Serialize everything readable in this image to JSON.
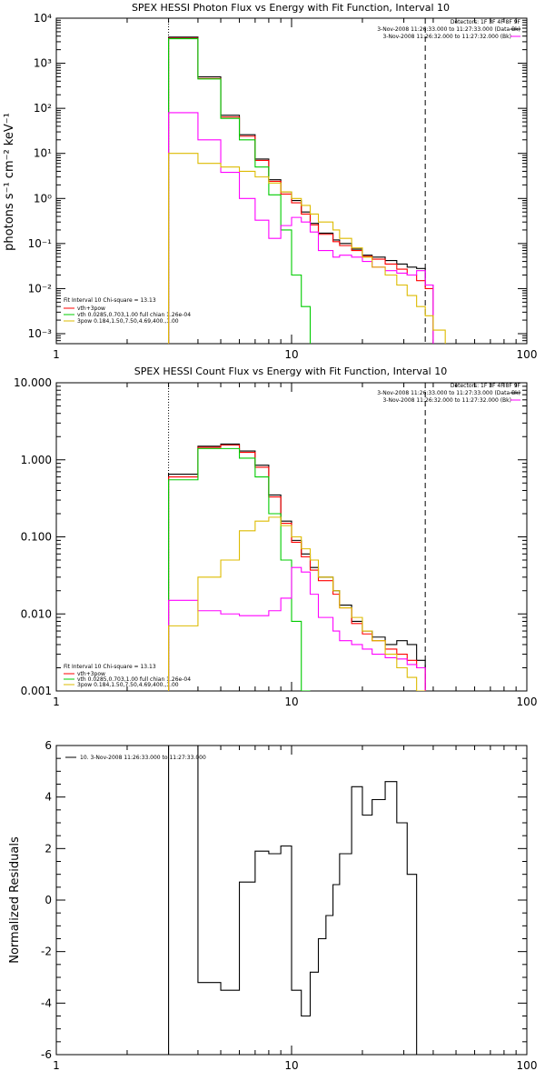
{
  "chart_data": [
    {
      "type": "line",
      "title": "SPEX HESSI Photon Flux vs Energy with Fit Function, Interval 10",
      "ylabel": "photons s⁻¹ cm⁻² keV⁻¹",
      "xlabel": "",
      "xscale": "log",
      "yscale": "log",
      "xlim": [
        1,
        100
      ],
      "ylim": [
        0.0006,
        10000
      ],
      "xticks": [
        1,
        10,
        100
      ],
      "xtick_labels": [
        "1",
        "10",
        "100"
      ],
      "yticks": [
        0.001,
        0.01,
        0.1,
        1,
        10,
        100,
        1000,
        10000
      ],
      "ytick_labels": [
        "10⁻³",
        "10⁻²",
        "10⁻¹",
        "10⁰",
        "10¹",
        "10²",
        "10³",
        "10⁴"
      ],
      "header_text": [
        "Detectors: 1F 3F 4F 8F 9F",
        "3-Nov-2008 11:26:33.000 to 11:27:33.000 (Data-Bk)",
        "3-Nov-2008 11:26:32.000 to 11:27:32.000 (Bk)"
      ],
      "legend_text": [
        "Fit Interval 10   Chi-square = 13.13",
        "vth+3pow",
        "vth 0.0285,0.703,1.00  full chian 1.26e-04",
        "3pow 0.184,1.50,7.50,4.69,400.,1.00"
      ],
      "vlines": [
        {
          "x": 3,
          "style": "dotted"
        },
        {
          "x": 37,
          "style": "dashed"
        }
      ],
      "series": [
        {
          "name": "",
          "color": "#000000",
          "edges": [
            3,
            4,
            5,
            6,
            7,
            8,
            9,
            10,
            11,
            12,
            13,
            15,
            16,
            18,
            20,
            22,
            25,
            28,
            31,
            34,
            37,
            40
          ],
          "values": [
            3800,
            500,
            70,
            26,
            7.5,
            2.6,
            1.4,
            0.9,
            0.5,
            0.28,
            0.17,
            0.12,
            0.1,
            0.075,
            0.055,
            0.05,
            0.042,
            0.035,
            0.03,
            0.028,
            0.012
          ]
        },
        {
          "name": "",
          "color": "#ff0000",
          "edges": [
            3,
            4,
            5,
            6,
            7,
            8,
            9,
            10,
            11,
            12,
            13,
            15,
            16,
            18,
            20,
            22,
            25,
            28,
            31,
            34,
            37,
            40
          ],
          "values": [
            3600,
            460,
            64,
            24,
            7,
            2.4,
            1.25,
            0.8,
            0.45,
            0.26,
            0.16,
            0.11,
            0.09,
            0.07,
            0.052,
            0.045,
            0.035,
            0.027,
            0.02,
            0.015,
            0.01
          ]
        },
        {
          "name": "",
          "color": "#00cc00",
          "edges": [
            3,
            4,
            5,
            6,
            7,
            8,
            9,
            10,
            11,
            12
          ],
          "values": [
            3500,
            450,
            60,
            20,
            5,
            1.2,
            0.2,
            0.02,
            0.004
          ]
        },
        {
          "name": "",
          "color": "#ff00ff",
          "edges": [
            3,
            4,
            5,
            6,
            7,
            8,
            9,
            10,
            11,
            12,
            13,
            15,
            16,
            18,
            20,
            22,
            25,
            28,
            31,
            34,
            37,
            40
          ],
          "values": [
            80,
            20,
            3.8,
            1.0,
            0.33,
            0.13,
            0.25,
            0.38,
            0.3,
            0.18,
            0.07,
            0.05,
            0.055,
            0.05,
            0.04,
            0.03,
            0.025,
            0.022,
            0.02,
            0.025,
            0.012
          ]
        },
        {
          "name": "",
          "color": "#ddbb00",
          "edges": [
            3,
            4,
            5,
            6,
            7,
            8,
            9,
            10,
            11,
            12,
            13,
            15,
            16,
            18,
            20,
            22,
            25,
            28,
            31,
            34,
            37,
            40,
            45
          ],
          "values": [
            10,
            6,
            5,
            4,
            3,
            2.2,
            1.4,
            1.0,
            0.7,
            0.45,
            0.3,
            0.2,
            0.13,
            0.08,
            0.05,
            0.03,
            0.02,
            0.012,
            0.007,
            0.004,
            0.0025,
            0.0012
          ]
        }
      ]
    },
    {
      "type": "line",
      "title": "SPEX HESSI Count Flux vs Energy with Fit Function, Interval 10",
      "xlabel": "",
      "ylabel": "",
      "xscale": "log",
      "yscale": "log",
      "xlim": [
        1,
        100
      ],
      "ylim": [
        0.001,
        10
      ],
      "xticks": [
        1,
        10,
        100
      ],
      "xtick_labels": [
        "1",
        "10",
        "100"
      ],
      "yticks": [
        0.001,
        0.01,
        0.1,
        1,
        10
      ],
      "ytick_labels": [
        "0.001",
        "0.010",
        "0.100",
        "1.000",
        "10.000"
      ],
      "header_text": [
        "Detectors: 1F 3F 4F 8F 9F",
        "3-Nov-2008 11:26:33.000 to 11:27:33.000 (Data-Bk)",
        "3-Nov-2008 11:26:32.000 to 11:27:32.000 (Bk)"
      ],
      "legend_text": [
        "Fit Interval 10   Chi-square = 13.13",
        "vth+3pow",
        "vth 0.0285,0.703,1.00  full chian 1.26e-04",
        "3pow 0.184,1.50,7.50,4.69,400.,1.00"
      ],
      "vlines": [
        {
          "x": 3,
          "style": "dotted"
        },
        {
          "x": 37,
          "style": "dashed"
        }
      ],
      "series": [
        {
          "name": "",
          "color": "#000000",
          "edges": [
            3,
            4,
            5,
            6,
            7,
            8,
            9,
            10,
            11,
            12,
            13,
            15,
            16,
            18,
            20,
            22,
            25,
            28,
            31,
            34,
            37
          ],
          "values": [
            0.65,
            1.5,
            1.6,
            1.3,
            0.85,
            0.35,
            0.16,
            0.09,
            0.06,
            0.04,
            0.03,
            0.02,
            0.013,
            0.008,
            0.006,
            0.005,
            0.004,
            0.0045,
            0.004,
            0.0025
          ]
        },
        {
          "name": "",
          "color": "#ff0000",
          "edges": [
            3,
            4,
            5,
            6,
            7,
            8,
            9,
            10,
            11,
            12,
            13,
            15,
            16,
            18,
            20,
            22,
            25,
            28,
            31,
            34,
            37
          ],
          "values": [
            0.6,
            1.45,
            1.55,
            1.25,
            0.8,
            0.33,
            0.15,
            0.085,
            0.055,
            0.037,
            0.027,
            0.018,
            0.012,
            0.0075,
            0.0055,
            0.0045,
            0.0035,
            0.003,
            0.0025,
            0.002
          ]
        },
        {
          "name": "",
          "color": "#00cc00",
          "edges": [
            3,
            4,
            5,
            6,
            7,
            8,
            9,
            10,
            11,
            12
          ],
          "values": [
            0.55,
            1.4,
            1.4,
            1.05,
            0.6,
            0.2,
            0.05,
            0.008,
            0.001
          ]
        },
        {
          "name": "",
          "color": "#ff00ff",
          "edges": [
            3,
            4,
            5,
            6,
            7,
            8,
            9,
            10,
            11,
            12,
            13,
            15,
            16,
            18,
            20,
            22,
            25,
            28,
            31,
            34,
            37
          ],
          "values": [
            0.015,
            0.011,
            0.01,
            0.0095,
            0.0095,
            0.011,
            0.016,
            0.04,
            0.035,
            0.018,
            0.009,
            0.006,
            0.0045,
            0.004,
            0.0035,
            0.003,
            0.0027,
            0.0026,
            0.0022,
            0.002
          ]
        },
        {
          "name": "",
          "color": "#ddbb00",
          "edges": [
            3,
            4,
            5,
            6,
            7,
            8,
            9,
            10,
            11,
            12,
            13,
            15,
            16,
            18,
            20,
            22,
            25,
            28,
            31,
            34,
            37,
            40
          ],
          "values": [
            0.007,
            0.03,
            0.05,
            0.12,
            0.16,
            0.18,
            0.14,
            0.1,
            0.07,
            0.05,
            0.03,
            0.02,
            0.012,
            0.009,
            0.006,
            0.0045,
            0.003,
            0.002,
            0.0015,
            0.001,
            0.0007
          ]
        }
      ]
    },
    {
      "type": "line",
      "title": "",
      "xlabel": "",
      "ylabel": "Normalized Residuals",
      "xscale": "log",
      "yscale": "linear",
      "xlim": [
        1,
        100
      ],
      "ylim": [
        -6,
        6
      ],
      "xticks": [
        1,
        10,
        100
      ],
      "xtick_labels": [
        "1",
        "10",
        "100"
      ],
      "yticks": [
        -6,
        -4,
        -2,
        0,
        2,
        4,
        6
      ],
      "ytick_labels": [
        "-6",
        "-4",
        "-2",
        "0",
        "2",
        "4",
        "6"
      ],
      "legend_text": [
        "10.  3-Nov-2008 11:26:33.000 to 11:27:33.000"
      ],
      "series": [
        {
          "name": "",
          "color": "#000000",
          "edges": [
            3,
            4,
            5,
            6,
            7,
            8,
            9,
            10,
            11,
            12,
            13,
            14,
            15,
            16,
            18,
            20,
            22,
            25,
            28,
            31,
            34,
            37
          ],
          "values": [
            6,
            -3.2,
            -3.5,
            0.7,
            1.9,
            1.8,
            2.1,
            -3.5,
            -4.5,
            -2.8,
            -1.5,
            -0.6,
            0.6,
            1.8,
            4.4,
            3.3,
            3.9,
            4.6,
            3.0,
            1.0,
            -6
          ]
        }
      ]
    }
  ]
}
